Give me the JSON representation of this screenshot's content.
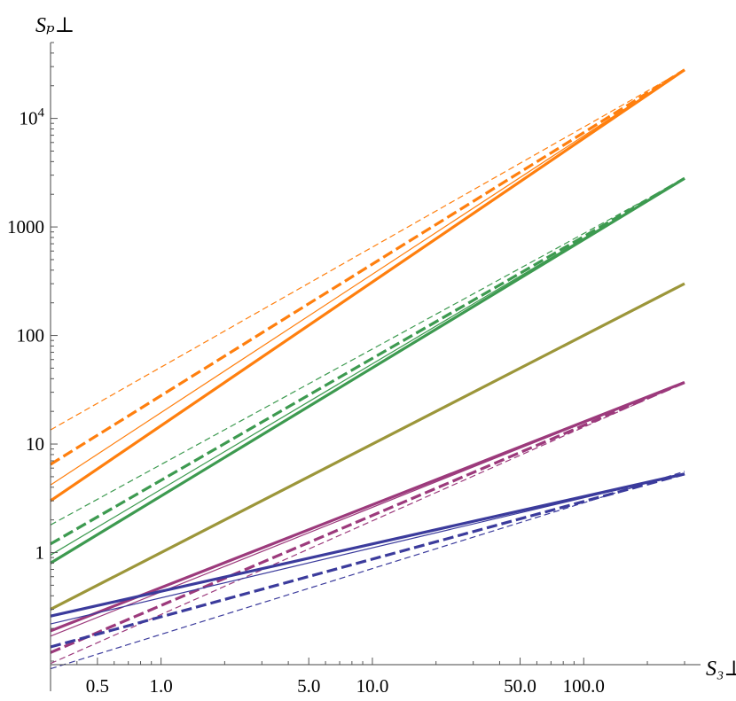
{
  "chart_data": {
    "type": "line",
    "title": "",
    "xlabel": "S₃⊥",
    "ylabel": "Sₚ⊥",
    "x_scale": "log",
    "y_scale": "log",
    "xlim": [
      0.3,
      300
    ],
    "ylim": [
      0.1,
      50000
    ],
    "grid": false,
    "legend": "none",
    "x_ticks": [
      {
        "value": 0.5,
        "label": "0.5"
      },
      {
        "value": 1,
        "label": "1.0"
      },
      {
        "value": 5,
        "label": "5.0"
      },
      {
        "value": 10,
        "label": "10.0"
      },
      {
        "value": 50,
        "label": "50.0"
      },
      {
        "value": 100,
        "label": "100.0"
      }
    ],
    "y_ticks": [
      {
        "value": 1,
        "label": "1"
      },
      {
        "value": 10,
        "label": "10"
      },
      {
        "value": 100,
        "label": "100"
      },
      {
        "value": 1000,
        "label": "1000"
      },
      {
        "value": 10000,
        "label": "10",
        "exponent": "4"
      }
    ],
    "series": [
      {
        "color": "#ff7f0e",
        "style": "solid-thick",
        "x": [
          0.3,
          300
        ],
        "y": [
          3.0,
          28000
        ]
      },
      {
        "color": "#ff7f0e",
        "style": "dashed-thick",
        "x": [
          0.3,
          300
        ],
        "y": [
          6.5,
          28000
        ]
      },
      {
        "color": "#ff7f0e",
        "style": "solid-thin",
        "x": [
          0.3,
          300
        ],
        "y": [
          4.2,
          28000
        ]
      },
      {
        "color": "#ff7f0e",
        "style": "dashed-thin",
        "x": [
          0.3,
          300
        ],
        "y": [
          13.5,
          28000
        ]
      },
      {
        "color": "#3d9a50",
        "style": "solid-thick",
        "x": [
          0.3,
          300
        ],
        "y": [
          0.8,
          2800
        ]
      },
      {
        "color": "#3d9a50",
        "style": "dashed-thick",
        "x": [
          0.3,
          300
        ],
        "y": [
          1.2,
          2800
        ]
      },
      {
        "color": "#3d9a50",
        "style": "solid-thin",
        "x": [
          0.3,
          300
        ],
        "y": [
          0.95,
          2800
        ]
      },
      {
        "color": "#3d9a50",
        "style": "dashed-thin",
        "x": [
          0.3,
          300
        ],
        "y": [
          1.8,
          2800
        ]
      },
      {
        "color": "#9c963a",
        "style": "solid-thick",
        "x": [
          0.3,
          300
        ],
        "y": [
          0.3,
          300
        ]
      },
      {
        "color": "#9c3a7c",
        "style": "solid-thick",
        "x": [
          0.3,
          300
        ],
        "y": [
          0.19,
          37
        ]
      },
      {
        "color": "#9c3a7c",
        "style": "dashed-thick",
        "x": [
          0.3,
          300
        ],
        "y": [
          0.12,
          37
        ]
      },
      {
        "color": "#9c3a7c",
        "style": "solid-thin",
        "x": [
          0.3,
          300
        ],
        "y": [
          0.17,
          37
        ]
      },
      {
        "color": "#9c3a7c",
        "style": "dashed-thin",
        "x": [
          0.3,
          300
        ],
        "y": [
          0.095,
          37
        ]
      },
      {
        "color": "#3b3b9c",
        "style": "solid-thick",
        "x": [
          0.3,
          300
        ],
        "y": [
          0.26,
          5.3
        ]
      },
      {
        "color": "#3b3b9c",
        "style": "dashed-thick",
        "x": [
          0.3,
          300
        ],
        "y": [
          0.135,
          5.3
        ]
      },
      {
        "color": "#3b3b9c",
        "style": "solid-thin",
        "x": [
          0.3,
          300
        ],
        "y": [
          0.22,
          5.3
        ]
      },
      {
        "color": "#3b3b9c",
        "style": "dashed-thin",
        "x": [
          0.3,
          300
        ],
        "y": [
          0.085,
          5.6
        ]
      }
    ]
  }
}
